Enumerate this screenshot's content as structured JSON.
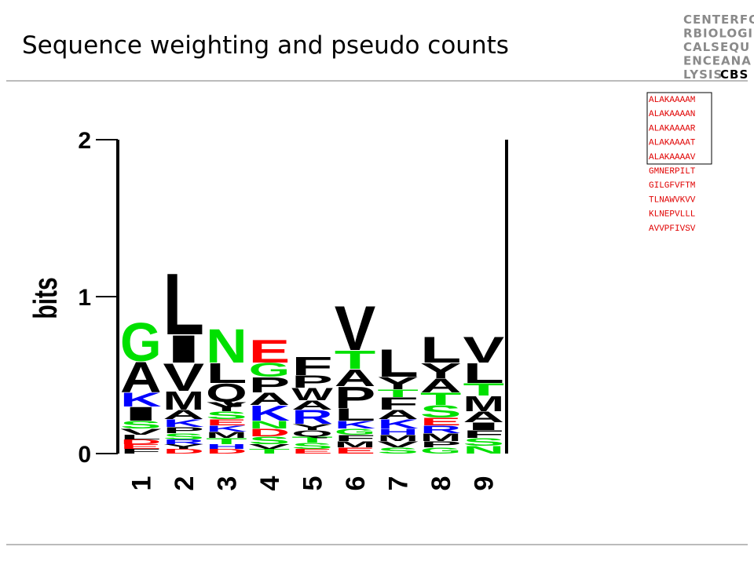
{
  "title": "Sequence weighting and pseudo counts",
  "logo": {
    "lines": [
      "CENTERFO",
      "RBIOLOGI",
      "CALSEQU",
      "ENCEANA",
      "LYSIS"
    ],
    "mark": "CBS"
  },
  "aligned_sequences": {
    "highlighted": [
      "ALAKAAAAM",
      "ALAKAAAAN",
      "ALAKAAAAR",
      "ALAKAAAAT",
      "ALAKAAAAV"
    ],
    "others": [
      "GMNERPILT",
      "GILGFVFTM",
      "TLNAWVKVV",
      "KLNEPVLLL",
      "AVVPFIVSV"
    ]
  },
  "chart_data": {
    "type": "logo",
    "ylabel": "bits",
    "ylim": [
      0,
      2
    ],
    "yticks": [
      0,
      1,
      2
    ],
    "categories": [
      "1",
      "2",
      "3",
      "4",
      "5",
      "6",
      "7",
      "8",
      "9"
    ],
    "letter_colors": {
      "A": "#000000",
      "V": "#000000",
      "L": "#000000",
      "I": "#000000",
      "M": "#000000",
      "F": "#000000",
      "W": "#000000",
      "P": "#000000",
      "Y": "#000000",
      "Q": "#000000",
      "G": "#00e000",
      "S": "#00e000",
      "T": "#00e000",
      "N": "#00e000",
      "C": "#00e000",
      "K": "#0000ff",
      "R": "#0000ff",
      "H": "#0000ff",
      "D": "#ff0000",
      "E": "#ff0000"
    },
    "stacks": [
      [
        {
          "letter": "F",
          "bits": 0.03
        },
        {
          "letter": "E",
          "bits": 0.03
        },
        {
          "letter": "D",
          "bits": 0.03
        },
        {
          "letter": "L",
          "bits": 0.03
        },
        {
          "letter": "V",
          "bits": 0.04
        },
        {
          "letter": "S",
          "bits": 0.05
        },
        {
          "letter": "I",
          "bits": 0.09
        },
        {
          "letter": "K",
          "bits": 0.09
        },
        {
          "letter": "A",
          "bits": 0.2
        },
        {
          "letter": "G",
          "bits": 0.25
        }
      ],
      [
        {
          "letter": "D",
          "bits": 0.03
        },
        {
          "letter": "Y",
          "bits": 0.03
        },
        {
          "letter": "R",
          "bits": 0.03
        },
        {
          "letter": "S",
          "bits": 0.04
        },
        {
          "letter": "P",
          "bits": 0.04
        },
        {
          "letter": "K",
          "bits": 0.05
        },
        {
          "letter": "A",
          "bits": 0.06
        },
        {
          "letter": "M",
          "bits": 0.12
        },
        {
          "letter": "V",
          "bits": 0.18
        },
        {
          "letter": "I",
          "bits": 0.18
        },
        {
          "letter": "L",
          "bits": 0.4
        }
      ],
      [
        {
          "letter": "D",
          "bits": 0.03
        },
        {
          "letter": "H",
          "bits": 0.03
        },
        {
          "letter": "T",
          "bits": 0.04
        },
        {
          "letter": "M",
          "bits": 0.04
        },
        {
          "letter": "K",
          "bits": 0.04
        },
        {
          "letter": "E",
          "bits": 0.04
        },
        {
          "letter": "S",
          "bits": 0.05
        },
        {
          "letter": "Y",
          "bits": 0.06
        },
        {
          "letter": "Q",
          "bits": 0.12
        },
        {
          "letter": "L",
          "bits": 0.13
        },
        {
          "letter": "N",
          "bits": 0.22
        }
      ],
      [
        {
          "letter": "T",
          "bits": 0.03
        },
        {
          "letter": "V",
          "bits": 0.03
        },
        {
          "letter": "S",
          "bits": 0.05
        },
        {
          "letter": "D",
          "bits": 0.05
        },
        {
          "letter": "N",
          "bits": 0.05
        },
        {
          "letter": "K",
          "bits": 0.1
        },
        {
          "letter": "A",
          "bits": 0.08
        },
        {
          "letter": "P",
          "bits": 0.1
        },
        {
          "letter": "G",
          "bits": 0.09
        },
        {
          "letter": "E",
          "bits": 0.15
        }
      ],
      [
        {
          "letter": "E",
          "bits": 0.03
        },
        {
          "letter": "S",
          "bits": 0.04
        },
        {
          "letter": "T",
          "bits": 0.04
        },
        {
          "letter": "Q",
          "bits": 0.04
        },
        {
          "letter": "Y",
          "bits": 0.04
        },
        {
          "letter": "R",
          "bits": 0.09
        },
        {
          "letter": "A",
          "bits": 0.06
        },
        {
          "letter": "W",
          "bits": 0.08
        },
        {
          "letter": "P",
          "bits": 0.08
        },
        {
          "letter": "F",
          "bits": 0.12
        }
      ],
      [
        {
          "letter": "E",
          "bits": 0.04
        },
        {
          "letter": "M",
          "bits": 0.04
        },
        {
          "letter": "F",
          "bits": 0.04
        },
        {
          "letter": "G",
          "bits": 0.04
        },
        {
          "letter": "K",
          "bits": 0.05
        },
        {
          "letter": "L",
          "bits": 0.08
        },
        {
          "letter": "P",
          "bits": 0.14
        },
        {
          "letter": "A",
          "bits": 0.11
        },
        {
          "letter": "T",
          "bits": 0.12
        },
        {
          "letter": "V",
          "bits": 0.29
        }
      ],
      [
        {
          "letter": "S",
          "bits": 0.04
        },
        {
          "letter": "V",
          "bits": 0.04
        },
        {
          "letter": "M",
          "bits": 0.04
        },
        {
          "letter": "H",
          "bits": 0.04
        },
        {
          "letter": "K",
          "bits": 0.06
        },
        {
          "letter": "A",
          "bits": 0.06
        },
        {
          "letter": "F",
          "bits": 0.08
        },
        {
          "letter": "T",
          "bits": 0.05
        },
        {
          "letter": "Y",
          "bits": 0.08
        },
        {
          "letter": "L",
          "bits": 0.18
        }
      ],
      [
        {
          "letter": "G",
          "bits": 0.04
        },
        {
          "letter": "P",
          "bits": 0.04
        },
        {
          "letter": "M",
          "bits": 0.05
        },
        {
          "letter": "R",
          "bits": 0.05
        },
        {
          "letter": "E",
          "bits": 0.05
        },
        {
          "letter": "S",
          "bits": 0.08
        },
        {
          "letter": "T",
          "bits": 0.08
        },
        {
          "letter": "A",
          "bits": 0.09
        },
        {
          "letter": "Y",
          "bits": 0.1
        },
        {
          "letter": "L",
          "bits": 0.17
        }
      ],
      [
        {
          "letter": "N",
          "bits": 0.05
        },
        {
          "letter": "S",
          "bits": 0.05
        },
        {
          "letter": "F",
          "bits": 0.05
        },
        {
          "letter": "I",
          "bits": 0.05
        },
        {
          "letter": "A",
          "bits": 0.07
        },
        {
          "letter": "M",
          "bits": 0.1
        },
        {
          "letter": "T",
          "bits": 0.08
        },
        {
          "letter": "L",
          "bits": 0.13
        },
        {
          "letter": "V",
          "bits": 0.17
        }
      ]
    ]
  }
}
